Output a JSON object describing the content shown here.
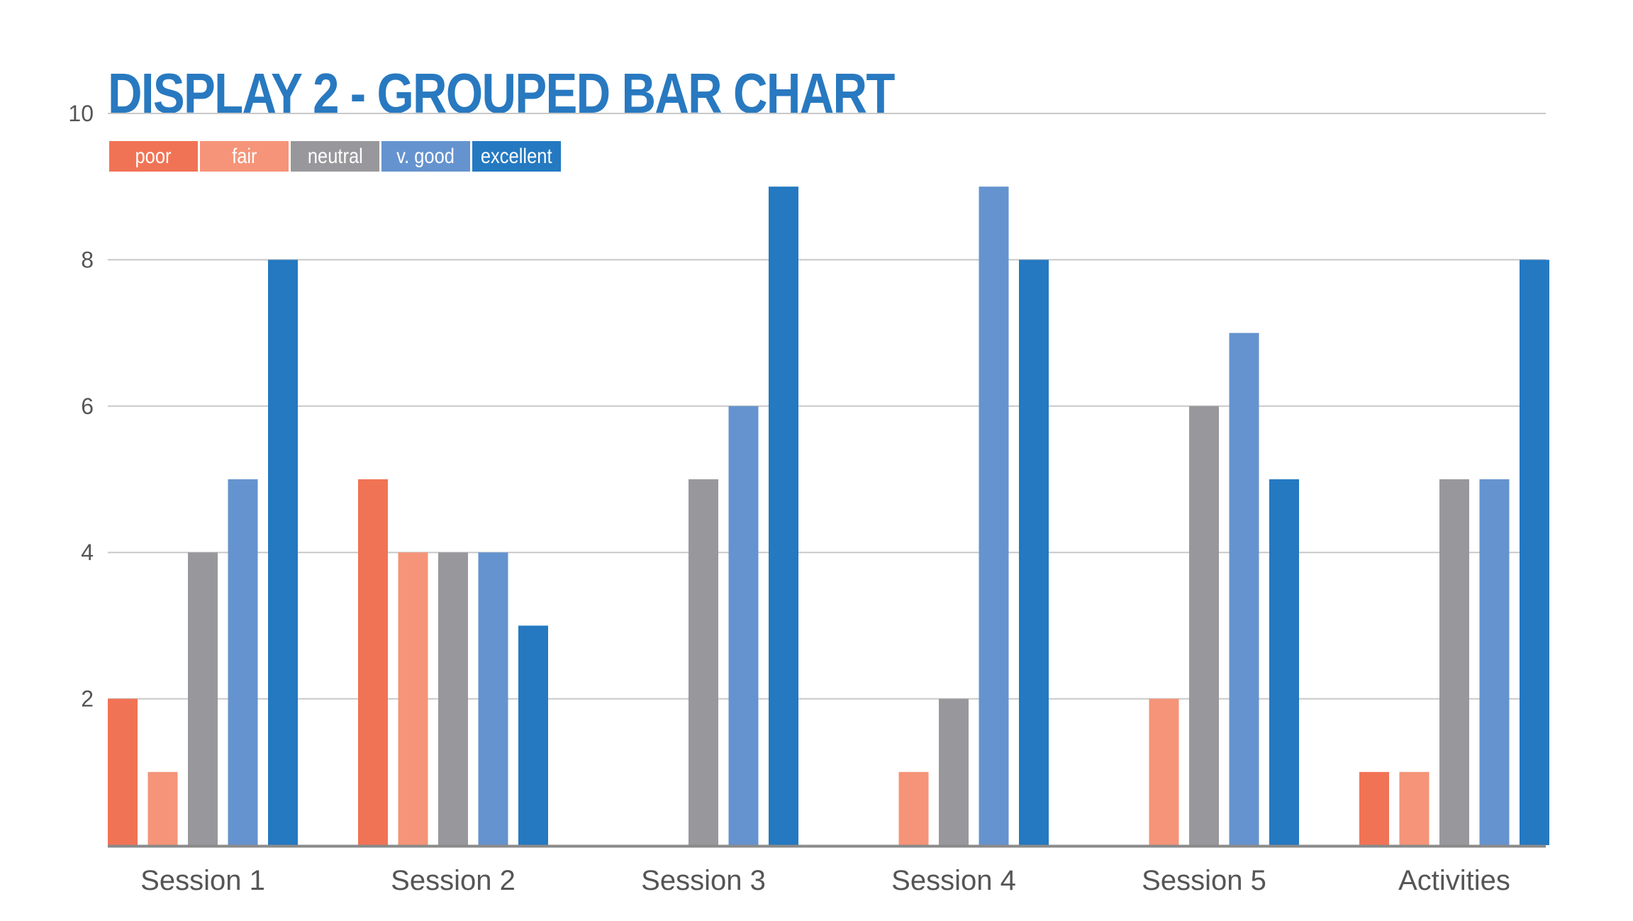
{
  "title": "DISPLAY 2 - GROUPED BAR CHART",
  "colors": {
    "title": "#2879c0",
    "grid": "#c8c8c8",
    "axis": "#8a8a8a",
    "tick_label": "#555555"
  },
  "chart_data": {
    "type": "bar",
    "title": "DISPLAY 2 - GROUPED BAR CHART",
    "xlabel": "",
    "ylabel": "",
    "categories": [
      "Session 1",
      "Session 2",
      "Session 3",
      "Session 4",
      "Session 5",
      "Activities"
    ],
    "ylim": [
      0,
      10
    ],
    "yticks": [
      2,
      4,
      6,
      8,
      10
    ],
    "grid": true,
    "legend_position": "top-left",
    "series": [
      {
        "name": "poor",
        "color": "#f17355",
        "values": [
          2,
          5,
          0,
          0,
          0,
          1
        ]
      },
      {
        "name": "fair",
        "color": "#f59478",
        "values": [
          1,
          4,
          0,
          1,
          2,
          1
        ]
      },
      {
        "name": "neutral",
        "color": "#98989c",
        "values": [
          4,
          4,
          5,
          2,
          6,
          5
        ]
      },
      {
        "name": "v. good",
        "color": "#6593cf",
        "values": [
          5,
          4,
          6,
          9,
          7,
          5
        ]
      },
      {
        "name": "excellent",
        "color": "#2479c1",
        "values": [
          8,
          3,
          9,
          8,
          5,
          8
        ]
      }
    ]
  }
}
